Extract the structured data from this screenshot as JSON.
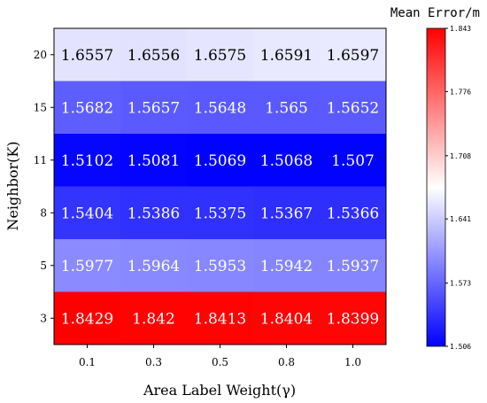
{
  "chart_data": {
    "type": "heatmap",
    "xlabel": "Area Label Weight(γ)",
    "ylabel": "Neighbor(K)",
    "x_categories": [
      "0.1",
      "0.3",
      "0.5",
      "0.8",
      "1.0"
    ],
    "y_categories": [
      "20",
      "15",
      "11",
      "8",
      "5",
      "3"
    ],
    "values": [
      [
        1.6557,
        1.6556,
        1.6575,
        1.6591,
        1.6597
      ],
      [
        1.5682,
        1.5657,
        1.5648,
        1.565,
        1.5652
      ],
      [
        1.5102,
        1.5081,
        1.5069,
        1.5068,
        1.507
      ],
      [
        1.5404,
        1.5386,
        1.5375,
        1.5367,
        1.5366
      ],
      [
        1.5977,
        1.5964,
        1.5953,
        1.5942,
        1.5937
      ],
      [
        1.8429,
        1.842,
        1.8413,
        1.8404,
        1.8399
      ]
    ],
    "colorbar": {
      "title": "Mean Error/m",
      "ticks": [
        "1.843",
        "1.776",
        "1.708",
        "1.641",
        "1.573",
        "1.506"
      ],
      "min": 1.506,
      "max": 1.843,
      "colormap": "bwr",
      "low_color": "#0000ff",
      "mid_color": "#ffffff",
      "high_color": "#ff0000"
    },
    "grid": false
  }
}
